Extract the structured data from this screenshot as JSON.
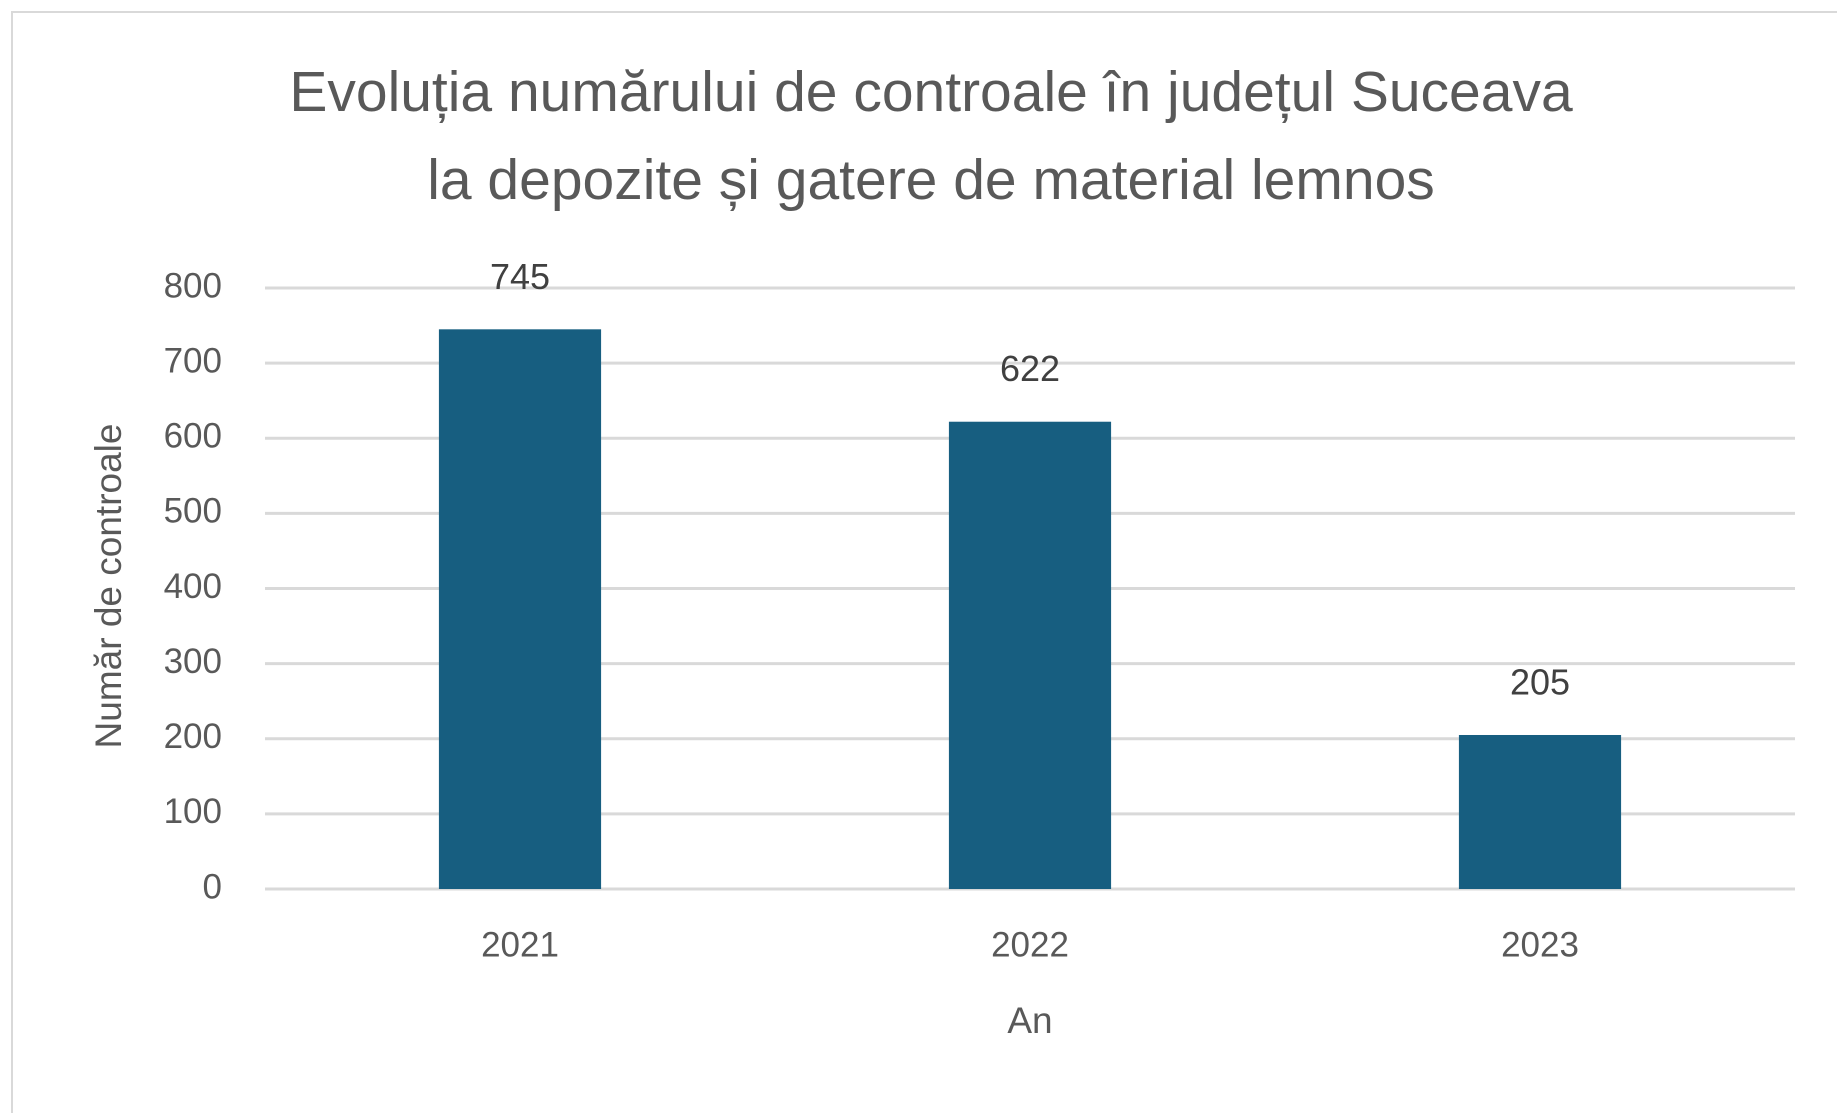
{
  "chart_data": {
    "type": "bar",
    "title": [
      "Evoluția numărului de controale în județul Suceava",
      "la depozite și gatere de material lemnos"
    ],
    "x_label": "An",
    "y_label": "Număr de controale",
    "categories": [
      "2021",
      "2022",
      "2023"
    ],
    "values": [
      745,
      622,
      205
    ],
    "color": "#175e80",
    "ylim": [
      0,
      800
    ],
    "yticks": [
      0,
      100,
      200,
      300,
      400,
      500,
      600,
      700,
      800
    ],
    "grid": true
  }
}
